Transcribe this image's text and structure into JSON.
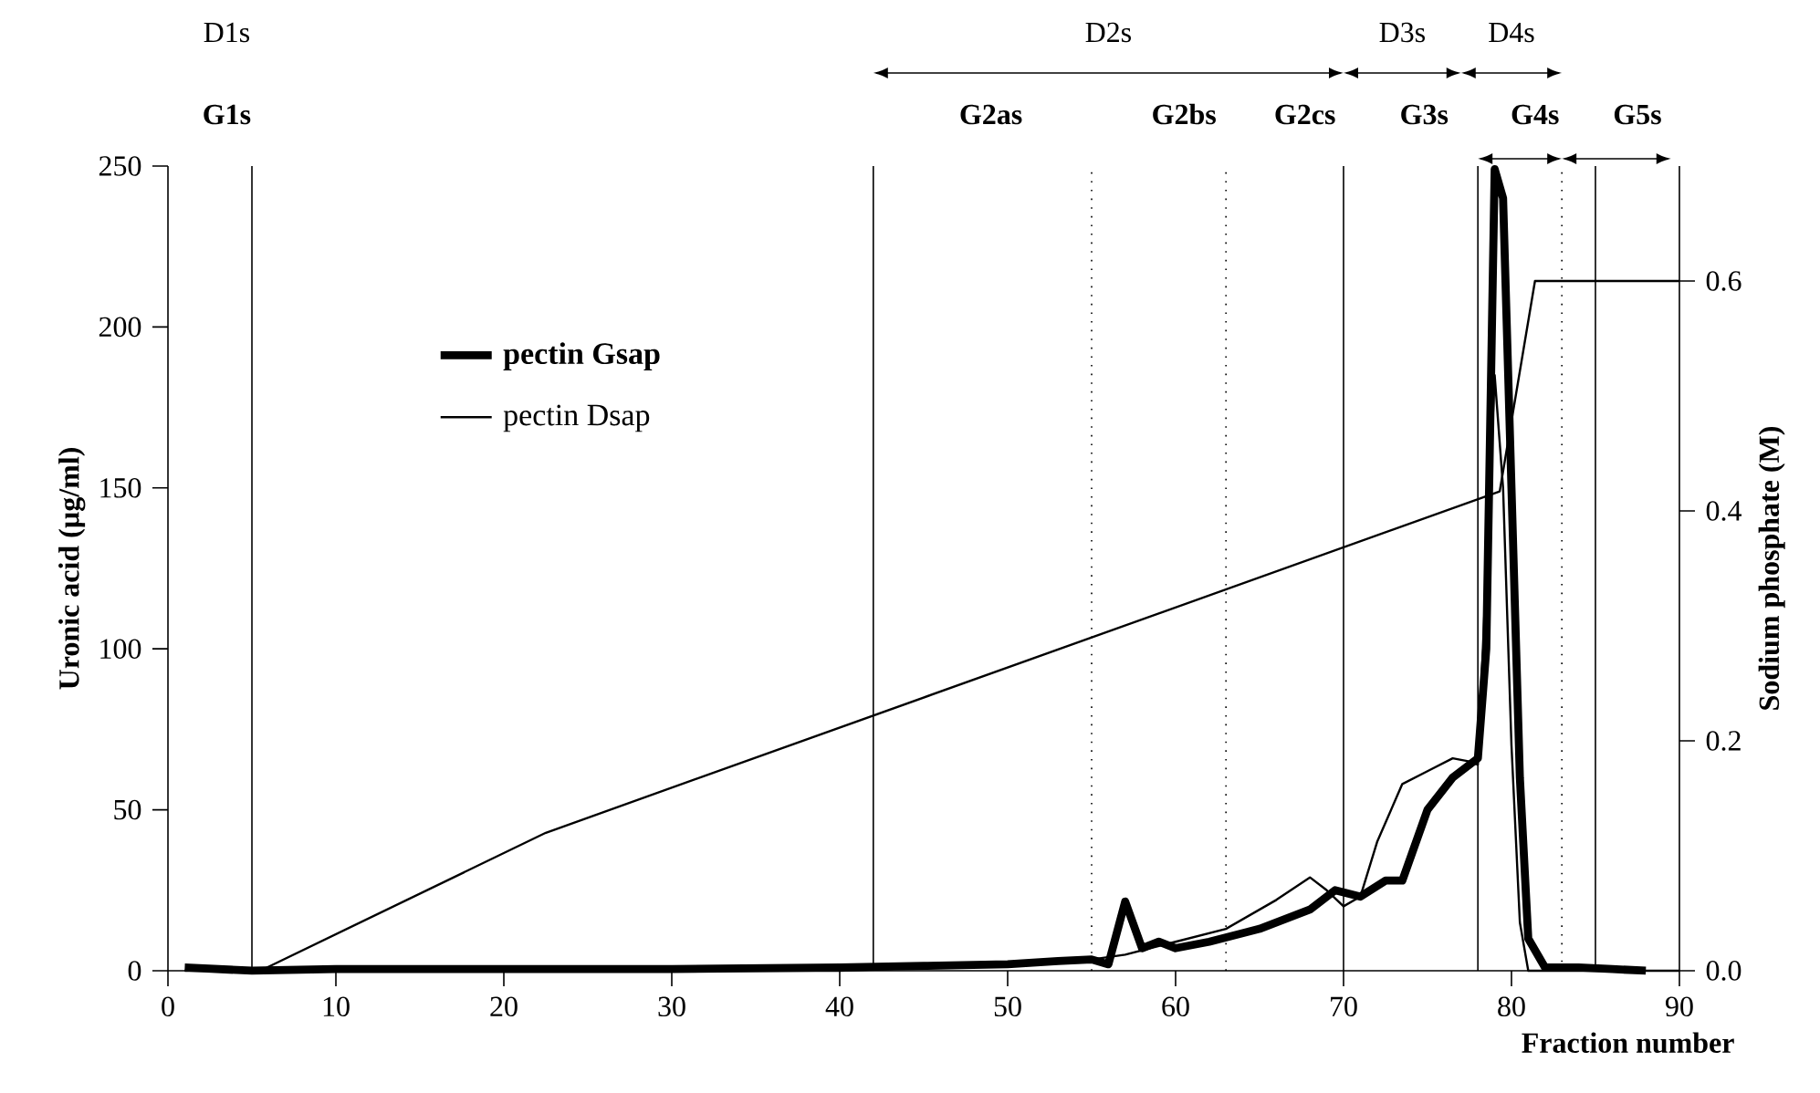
{
  "chart_data": {
    "type": "line",
    "xlabel": "Fraction number",
    "ylabel": "Uronic acid (µg/ml)",
    "y2label": "Sodium phosphate (M)",
    "xlim": [
      0,
      90
    ],
    "xticks": [
      0,
      10,
      20,
      30,
      40,
      50,
      60,
      70,
      80,
      90
    ],
    "ylim": [
      0,
      250
    ],
    "yticks": [
      0,
      50,
      100,
      150,
      200,
      250
    ],
    "y2lim": [
      0,
      0.7
    ],
    "y2ticks": [
      {
        "value": 0,
        "label": "0.0"
      },
      {
        "value": 0.2,
        "label": "0.2"
      },
      {
        "value": 0.4,
        "label": "0.4"
      },
      {
        "value": 0.6,
        "label": "0.6"
      }
    ],
    "legend": "left",
    "marker": "none",
    "line_style": "solid",
    "grid": false,
    "series": [
      {
        "name": "pectin Gsap",
        "color": "#000000",
        "x": [
          1,
          5,
          10,
          20,
          30,
          40,
          45,
          50,
          53,
          55,
          56,
          57,
          58,
          59,
          60,
          62,
          65,
          68,
          69.5,
          71,
          72.5,
          73.5,
          75,
          76.5,
          78,
          78.5,
          79,
          79.5,
          80,
          80.5,
          81,
          82,
          84,
          86,
          88
        ],
        "values": [
          1,
          0,
          0.5,
          0.5,
          0.5,
          1,
          1.5,
          2,
          3,
          3.5,
          2,
          21.5,
          7,
          9,
          7,
          9,
          13,
          19,
          25,
          23,
          28,
          28,
          50,
          60,
          66,
          100,
          249,
          240,
          150,
          60,
          10,
          1,
          1,
          0.5,
          0
        ]
      },
      {
        "name": "pectin Dsap",
        "color": "#000000",
        "x": [
          1,
          5,
          10,
          20,
          30,
          40,
          50,
          55,
          57,
          60,
          63,
          66,
          68,
          69,
          70,
          71,
          72,
          73.5,
          75,
          76.5,
          77.5,
          78,
          79,
          79.5,
          80,
          80.5,
          81,
          85,
          90
        ],
        "values": [
          0,
          0,
          0,
          0,
          0,
          0,
          2,
          3.5,
          5,
          9,
          13,
          22,
          29,
          25,
          20,
          23,
          40,
          58,
          62,
          66,
          65,
          64,
          185,
          150,
          70,
          15,
          0,
          0,
          0
        ]
      },
      {
        "color": "#000000",
        "axis": "y2",
        "x": [
          5.5,
          22.5,
          79.3,
          81.4,
          90
        ],
        "values": [
          0,
          0.12,
          0.417,
          0.6,
          0.6
        ]
      }
    ],
    "ref_lines": [
      {
        "axis": "x",
        "value": 5,
        "line_style": "solid"
      },
      {
        "axis": "x",
        "value": 42,
        "line_style": "solid"
      },
      {
        "axis": "x",
        "value": 55,
        "line_style": "dotted"
      },
      {
        "axis": "x",
        "value": 63,
        "line_style": "dotted"
      },
      {
        "axis": "x",
        "value": 70,
        "line_style": "solid"
      },
      {
        "axis": "x",
        "value": 78,
        "line_style": "solid"
      },
      {
        "axis": "x",
        "value": 83,
        "line_style": "dotted"
      },
      {
        "axis": "x",
        "value": 85,
        "line_style": "solid"
      }
    ],
    "annotations": [
      "D1s",
      "G1s",
      "D2s",
      "D3s",
      "D4s",
      "G2as",
      "G2bs",
      "G2cs",
      "G3s",
      "G4s",
      "G5s"
    ]
  }
}
